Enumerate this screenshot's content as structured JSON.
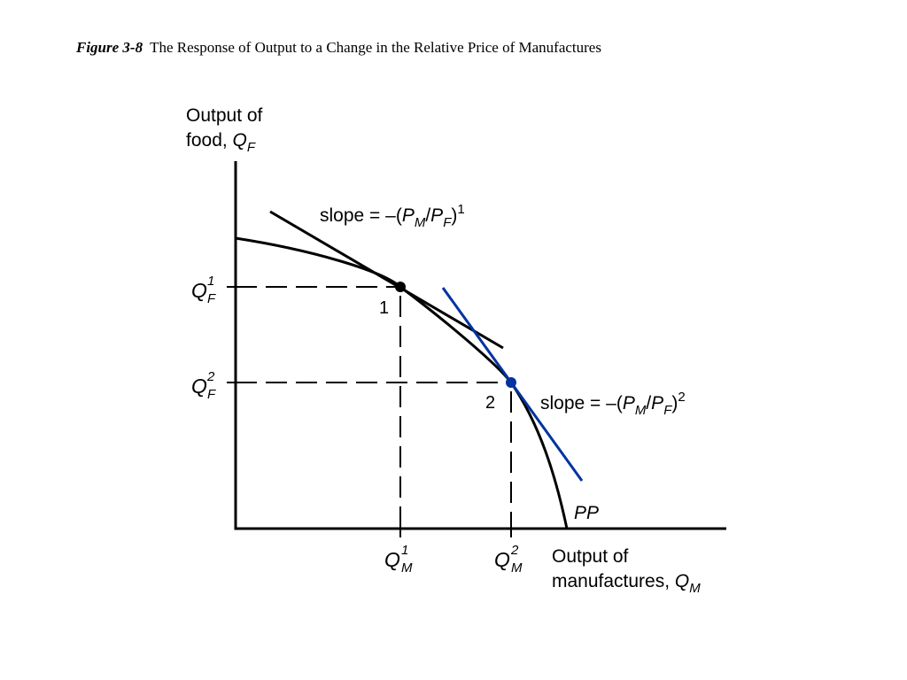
{
  "caption": {
    "number": "Figure 3-8",
    "title": "The Response of Output to a Change in the Relative Price of Manufactures"
  },
  "diagram": {
    "y_axis_label": {
      "line1": "Output of",
      "line2": "food, ",
      "var": "Q",
      "sub": "F"
    },
    "x_axis_label": {
      "line1": "Output of",
      "line2": "manufactures, ",
      "var": "Q",
      "sub": "M"
    },
    "curve_label": "PP",
    "slope1": {
      "text": "slope = –(",
      "p1": "P",
      "s1": "M",
      "slash": "/",
      "p2": "P",
      "s2": "F",
      "close": ")",
      "exp": "1"
    },
    "slope2": {
      "text": "slope = –(",
      "p1": "P",
      "s1": "M",
      "slash": "/",
      "p2": "P",
      "s2": "F",
      "close": ")",
      "exp": "2"
    },
    "point1_label": "1",
    "point2_label": "2",
    "qf1": {
      "var": "Q",
      "sub": "F",
      "sup": "1"
    },
    "qf2": {
      "var": "Q",
      "sub": "F",
      "sup": "2"
    },
    "qm1": {
      "var": "Q",
      "sub": "M",
      "sup": "1"
    },
    "qm2": {
      "var": "Q",
      "sub": "M",
      "sup": "2"
    },
    "colors": {
      "curve": "#000000",
      "tangent1": "#000000",
      "tangent2": "#0033a0",
      "point2": "#0033a0"
    }
  }
}
